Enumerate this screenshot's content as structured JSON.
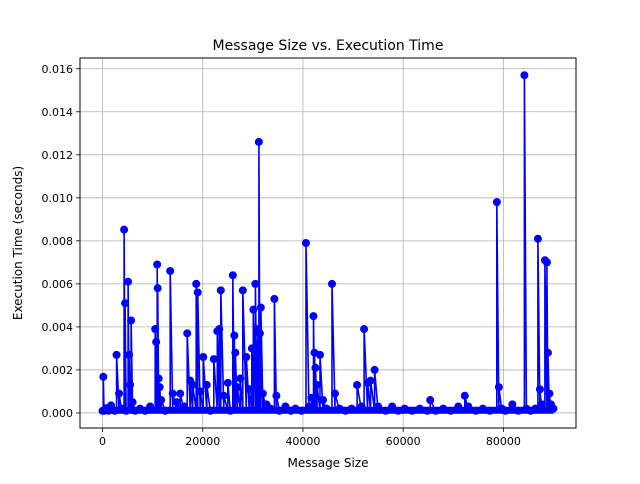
{
  "chart_data": {
    "type": "line",
    "title": "Message Size vs. Execution Time",
    "xlabel": "Message Size",
    "ylabel": "Execution Time (seconds)",
    "xlim": [
      -4500,
      94500
    ],
    "ylim": [
      -0.0007,
      0.0165
    ],
    "xticks": [
      0,
      20000,
      40000,
      60000,
      80000
    ],
    "yticks": [
      0.0,
      0.002,
      0.004,
      0.006,
      0.008,
      0.01,
      0.012,
      0.014,
      0.016
    ],
    "xtick_labels": [
      "0",
      "20000",
      "40000",
      "60000",
      "80000"
    ],
    "ytick_labels": [
      "0.000",
      "0.002",
      "0.004",
      "0.006",
      "0.008",
      "0.010",
      "0.012",
      "0.014",
      "0.016"
    ],
    "grid": true,
    "marker": "o",
    "color": "#0000ff",
    "baseline_x_range": [
      0,
      90000
    ],
    "baseline_y": 0.0001,
    "series": [
      {
        "points": [
          [
            0,
            0.0001
          ],
          [
            150,
            0.00168
          ],
          [
            300,
            0.0001
          ],
          [
            700,
            0.00022
          ],
          [
            1200,
            0.0001
          ],
          [
            1700,
            0.00035
          ],
          [
            2400,
            0.0001
          ],
          [
            2800,
            0.0027
          ],
          [
            3300,
            0.0009
          ],
          [
            3800,
            0.0002
          ],
          [
            4300,
            0.00852
          ],
          [
            4500,
            0.0051
          ],
          [
            4700,
            0.0001
          ],
          [
            5100,
            0.0061
          ],
          [
            5300,
            0.0027
          ],
          [
            5500,
            0.0013
          ],
          [
            5700,
            0.0043
          ],
          [
            6000,
            0.0005
          ],
          [
            6500,
            0.0001
          ],
          [
            7500,
            0.0002
          ],
          [
            8500,
            0.0001
          ],
          [
            9500,
            0.0003
          ],
          [
            10500,
            0.0039
          ],
          [
            10700,
            0.0033
          ],
          [
            10900,
            0.0069
          ],
          [
            11000,
            0.0058
          ],
          [
            11200,
            0.0016
          ],
          [
            11400,
            0.0012
          ],
          [
            11700,
            0.0006
          ],
          [
            12500,
            0.0001
          ],
          [
            13500,
            0.0066
          ],
          [
            14000,
            0.0009
          ],
          [
            14800,
            0.0005
          ],
          [
            15500,
            0.0009
          ],
          [
            16300,
            0.0003
          ],
          [
            16900,
            0.0037
          ],
          [
            17500,
            0.0015
          ],
          [
            18000,
            0.0013
          ],
          [
            18700,
            0.006
          ],
          [
            19000,
            0.0056
          ],
          [
            19500,
            0.001
          ],
          [
            20100,
            0.0026
          ],
          [
            20800,
            0.0013
          ],
          [
            21500,
            0.0001
          ],
          [
            22200,
            0.0025
          ],
          [
            22900,
            0.0038
          ],
          [
            23300,
            0.0039
          ],
          [
            23600,
            0.0057
          ],
          [
            24200,
            0.0008
          ],
          [
            25000,
            0.0014
          ],
          [
            25500,
            0.0001
          ],
          [
            26000,
            0.0064
          ],
          [
            26300,
            0.0036
          ],
          [
            26500,
            0.0028
          ],
          [
            26900,
            0.0012
          ],
          [
            27500,
            0.0016
          ],
          [
            28000,
            0.0057
          ],
          [
            28700,
            0.0026
          ],
          [
            29300,
            0.0011
          ],
          [
            29800,
            0.003
          ],
          [
            30100,
            0.0048
          ],
          [
            30500,
            0.006
          ],
          [
            30800,
            0.0032
          ],
          [
            31000,
            0.0039
          ],
          [
            31200,
            0.0126
          ],
          [
            31400,
            0.0037
          ],
          [
            31600,
            0.0049
          ],
          [
            32000,
            0.0009
          ],
          [
            32700,
            0.0004
          ],
          [
            33500,
            0.0002
          ],
          [
            34300,
            0.0053
          ],
          [
            34700,
            0.0008
          ],
          [
            35300,
            0.0001
          ],
          [
            36500,
            0.0003
          ],
          [
            37600,
            0.0001
          ],
          [
            38500,
            0.0002
          ],
          [
            39700,
            0.0001
          ],
          [
            40600,
            0.0079
          ],
          [
            41200,
            0.0003
          ],
          [
            41700,
            0.0007
          ],
          [
            42100,
            0.0045
          ],
          [
            42300,
            0.0028
          ],
          [
            42500,
            0.0021
          ],
          [
            42800,
            0.0013
          ],
          [
            43400,
            0.0027
          ],
          [
            44000,
            0.0006
          ],
          [
            44700,
            0.0002
          ],
          [
            45800,
            0.006
          ],
          [
            46400,
            0.0009
          ],
          [
            47300,
            0.0002
          ],
          [
            48500,
            0.0001
          ],
          [
            49700,
            0.0002
          ],
          [
            50800,
            0.0013
          ],
          [
            51700,
            0.0003
          ],
          [
            52200,
            0.0039
          ],
          [
            52900,
            0.0014
          ],
          [
            53500,
            0.0015
          ],
          [
            54300,
            0.002
          ],
          [
            55000,
            0.0003
          ],
          [
            56500,
            0.0001
          ],
          [
            57800,
            0.0003
          ],
          [
            59000,
            0.0001
          ],
          [
            60300,
            0.0002
          ],
          [
            61800,
            0.0001
          ],
          [
            63300,
            0.0002
          ],
          [
            64800,
            0.0001
          ],
          [
            65400,
            0.0006
          ],
          [
            66500,
            0.0001
          ],
          [
            68000,
            0.0002
          ],
          [
            69500,
            0.0001
          ],
          [
            71000,
            0.0003
          ],
          [
            72300,
            0.0008
          ],
          [
            73000,
            0.0003
          ],
          [
            74500,
            0.0001
          ],
          [
            75900,
            0.0002
          ],
          [
            77300,
            0.0001
          ],
          [
            78700,
            0.0098
          ],
          [
            79100,
            0.0012
          ],
          [
            79700,
            0.0002
          ],
          [
            80400,
            0.0001
          ],
          [
            81800,
            0.0004
          ],
          [
            83000,
            0.0001
          ],
          [
            84200,
            0.0157
          ],
          [
            84600,
            0.0002
          ],
          [
            85400,
            0.0001
          ],
          [
            86400,
            0.0002
          ],
          [
            86900,
            0.0081
          ],
          [
            87300,
            0.0011
          ],
          [
            87700,
            0.0004
          ],
          [
            88300,
            0.0071
          ],
          [
            88700,
            0.007
          ],
          [
            88900,
            0.0028
          ],
          [
            89200,
            0.0009
          ],
          [
            89500,
            0.0004
          ],
          [
            90000,
            0.0002
          ]
        ]
      }
    ]
  }
}
